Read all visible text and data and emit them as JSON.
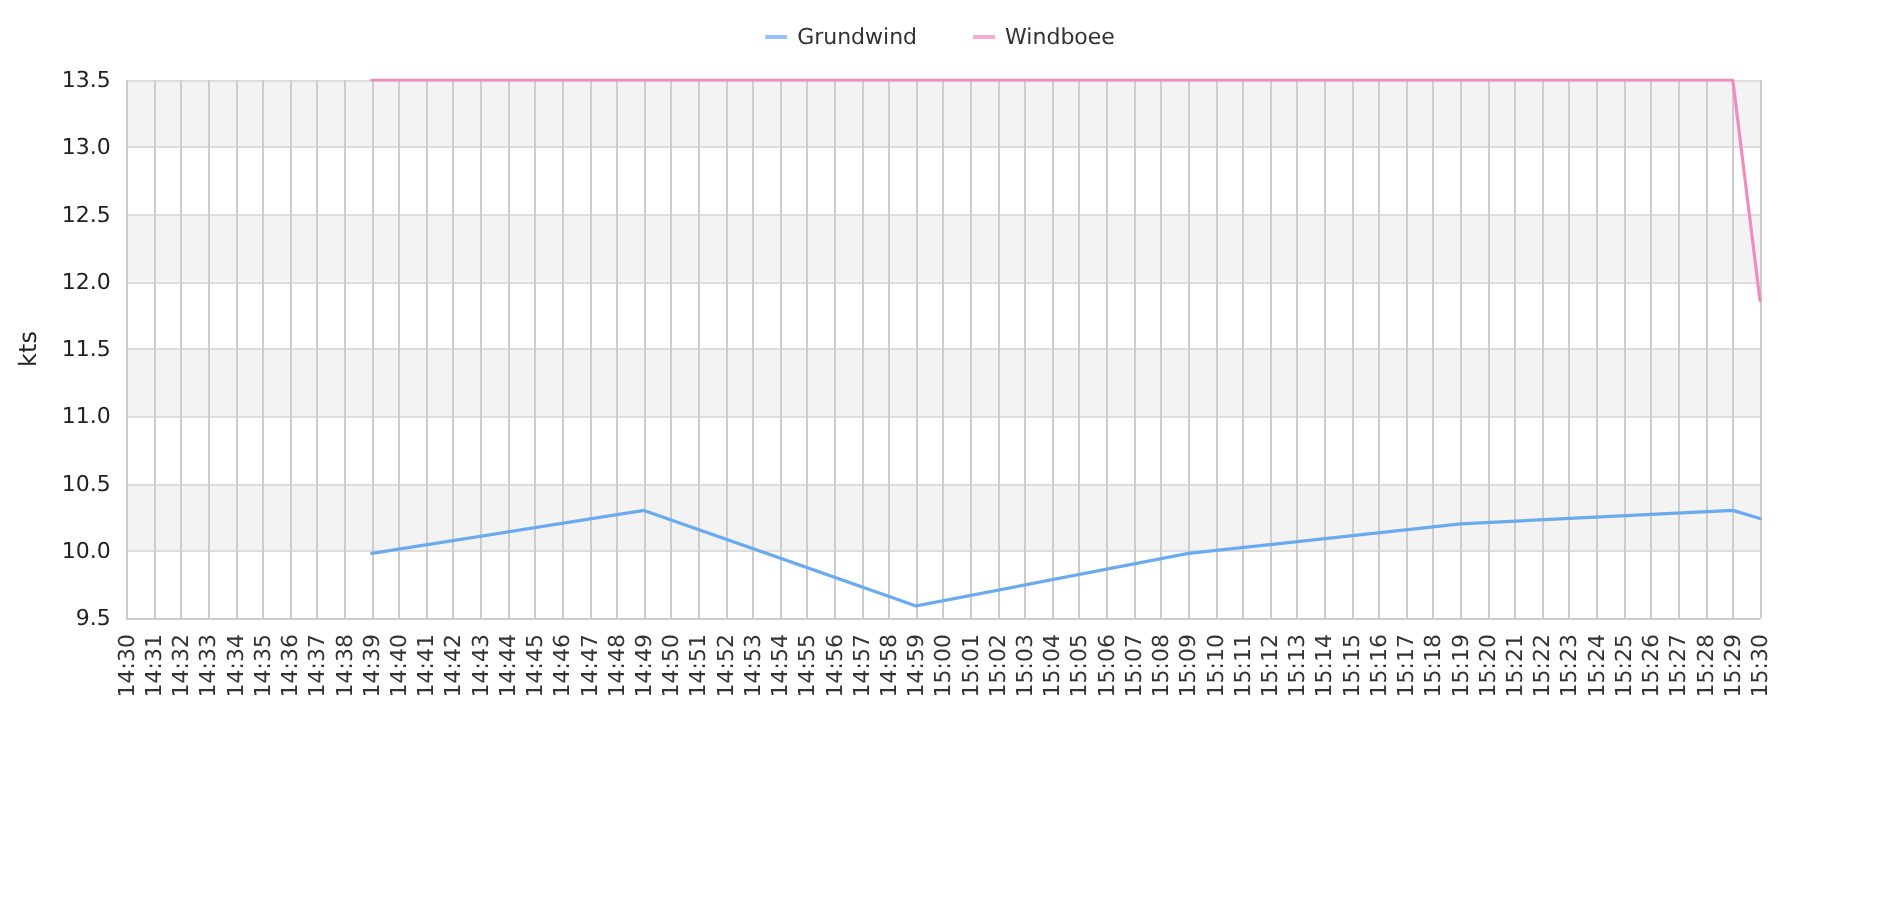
{
  "chart_data": {
    "type": "line",
    "ylabel": "kts",
    "categories": [
      "14:30",
      "14:31",
      "14:32",
      "14:33",
      "14:34",
      "14:35",
      "14:36",
      "14:37",
      "14:38",
      "14:39",
      "14:40",
      "14:41",
      "14:42",
      "14:43",
      "14:44",
      "14:45",
      "14:46",
      "14:47",
      "14:48",
      "14:49",
      "14:50",
      "14:51",
      "14:52",
      "14:53",
      "14:54",
      "14:55",
      "14:56",
      "14:57",
      "14:58",
      "14:59",
      "15:00",
      "15:01",
      "15:02",
      "15:03",
      "15:04",
      "15:05",
      "15:06",
      "15:07",
      "15:08",
      "15:09",
      "15:10",
      "15:11",
      "15:12",
      "15:13",
      "15:14",
      "15:15",
      "15:16",
      "15:17",
      "15:18",
      "15:19",
      "15:20",
      "15:21",
      "15:22",
      "15:23",
      "15:24",
      "15:25",
      "15:26",
      "15:27",
      "15:28",
      "15:29",
      "15:30"
    ],
    "series": [
      {
        "name": "Grundwind",
        "color": "#6aaaee",
        "x": [
          "14:39",
          "14:49",
          "14:59",
          "15:09",
          "15:19",
          "15:29",
          "15:30"
        ],
        "values": [
          9.98,
          10.3,
          9.59,
          9.98,
          10.2,
          10.3,
          10.24
        ]
      },
      {
        "name": "Windboee",
        "color": "#f08cc0",
        "x": [
          "14:39",
          "14:49",
          "14:59",
          "15:09",
          "15:19",
          "15:29",
          "15:30"
        ],
        "values": [
          13.5,
          13.5,
          13.5,
          13.5,
          13.5,
          13.5,
          11.86
        ]
      }
    ],
    "ylim": [
      9.5,
      13.5
    ],
    "yticks": [
      9.5,
      {
        "value": 10,
        "label": "10.0"
      },
      10.5,
      {
        "value": 11,
        "label": "11.0"
      },
      11.5,
      {
        "value": 12,
        "label": "12.0"
      },
      12.5,
      {
        "value": 13,
        "label": "13.0"
      },
      13.5
    ],
    "grid": true,
    "legend": "top",
    "marker": "none",
    "line_style": "solid"
  }
}
